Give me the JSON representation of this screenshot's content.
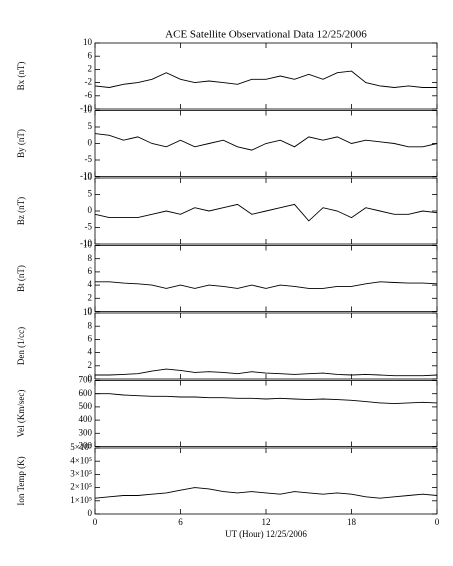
{
  "chart_data": [
    {
      "type": "line",
      "title": "ACE Satellite Observational Data   12/25/2006",
      "y_label": "Bx (nT)",
      "x": [
        0,
        1,
        2,
        3,
        4,
        5,
        6,
        7,
        8,
        9,
        10,
        11,
        12,
        13,
        14,
        15,
        16,
        17,
        18,
        19,
        20,
        21,
        22,
        23,
        24
      ],
      "values": [
        -3,
        -3.5,
        -2.5,
        -2,
        -1,
        1,
        -1,
        -2,
        -1.5,
        -2,
        -2.5,
        -1,
        -1,
        0,
        -1,
        0.5,
        -1,
        1,
        1.5,
        -2,
        -3,
        -3.5,
        -3,
        -3.5,
        -3.5
      ],
      "color": "#000000",
      "xlim": [
        0,
        24
      ],
      "ylim": [
        -10,
        10
      ],
      "yticks": [
        -10,
        -6,
        -2,
        2,
        6,
        10
      ]
    },
    {
      "type": "line",
      "y_label": "By (nT)",
      "x": [
        0,
        1,
        2,
        3,
        4,
        5,
        6,
        7,
        8,
        9,
        10,
        11,
        12,
        13,
        14,
        15,
        16,
        17,
        18,
        19,
        20,
        21,
        22,
        23,
        24
      ],
      "values": [
        3,
        2.5,
        1,
        2,
        0,
        -1,
        1,
        -1,
        0,
        1,
        -1,
        -2,
        0,
        1,
        -1,
        2,
        1,
        2,
        0,
        1,
        0.5,
        0,
        -1,
        -1,
        0
      ],
      "color": "#000000",
      "xlim": [
        0,
        24
      ],
      "ylim": [
        -10,
        10
      ],
      "yticks": [
        -10,
        -5,
        0,
        5,
        10
      ]
    },
    {
      "type": "line",
      "y_label": "Bz (nT)",
      "x": [
        0,
        1,
        2,
        3,
        4,
        5,
        6,
        7,
        8,
        9,
        10,
        11,
        12,
        13,
        14,
        15,
        16,
        17,
        18,
        19,
        20,
        21,
        22,
        23,
        24
      ],
      "values": [
        -1,
        -2,
        -2,
        -2,
        -1,
        0,
        -1,
        1,
        0,
        1,
        2,
        -1,
        0,
        1,
        2,
        -3,
        1,
        0,
        -2,
        1,
        0,
        -1,
        -1,
        0,
        -0.5
      ],
      "color": "#000000",
      "xlim": [
        0,
        24
      ],
      "ylim": [
        -10,
        10
      ],
      "yticks": [
        -10,
        -5,
        0,
        5,
        10
      ]
    },
    {
      "type": "line",
      "y_label": "Bt (nT)",
      "x": [
        0,
        1,
        2,
        3,
        4,
        5,
        6,
        7,
        8,
        9,
        10,
        11,
        12,
        13,
        14,
        15,
        16,
        17,
        18,
        19,
        20,
        21,
        22,
        23,
        24
      ],
      "values": [
        4.5,
        4.5,
        4.3,
        4.2,
        4,
        3.5,
        4,
        3.5,
        4,
        3.8,
        3.5,
        4,
        3.5,
        4,
        3.8,
        3.5,
        3.5,
        3.8,
        3.8,
        4.2,
        4.5,
        4.4,
        4.3,
        4.3,
        4.2
      ],
      "color": "#000000",
      "xlim": [
        0,
        24
      ],
      "ylim": [
        0,
        10
      ],
      "yticks": [
        0,
        2,
        4,
        6,
        8,
        10
      ]
    },
    {
      "type": "line",
      "y_label": "Den (1/cc)",
      "x": [
        0,
        1,
        2,
        3,
        4,
        5,
        6,
        7,
        8,
        9,
        10,
        11,
        12,
        13,
        14,
        15,
        16,
        17,
        18,
        19,
        20,
        21,
        22,
        23,
        24
      ],
      "values": [
        0.6,
        0.6,
        0.7,
        0.8,
        1.2,
        1.5,
        1.3,
        1,
        1.1,
        1,
        0.8,
        1.1,
        0.9,
        0.8,
        0.7,
        0.8,
        0.9,
        0.7,
        0.6,
        0.7,
        0.6,
        0.5,
        0.5,
        0.5,
        0.6
      ],
      "color": "#000000",
      "xlim": [
        0,
        24
      ],
      "ylim": [
        0,
        10
      ],
      "yticks": [
        0,
        2,
        4,
        6,
        8,
        10
      ]
    },
    {
      "type": "line",
      "y_label": "Vel (Km/sec)",
      "x": [
        0,
        1,
        2,
        3,
        4,
        5,
        6,
        7,
        8,
        9,
        10,
        11,
        12,
        13,
        14,
        15,
        16,
        17,
        18,
        19,
        20,
        21,
        22,
        23,
        24
      ],
      "values": [
        600,
        600,
        590,
        585,
        580,
        580,
        575,
        575,
        570,
        570,
        565,
        565,
        560,
        565,
        560,
        555,
        560,
        555,
        550,
        540,
        530,
        525,
        530,
        535,
        530
      ],
      "color": "#000000",
      "xlim": [
        0,
        24
      ],
      "ylim": [
        200,
        700
      ],
      "yticks": [
        200,
        300,
        400,
        500,
        600,
        700
      ]
    },
    {
      "type": "line",
      "y_label": "Ion Temp (K)",
      "x_label": "UT (Hour)  12/25/2006",
      "x": [
        0,
        1,
        2,
        3,
        4,
        5,
        6,
        7,
        8,
        9,
        10,
        11,
        12,
        13,
        14,
        15,
        16,
        17,
        18,
        19,
        20,
        21,
        22,
        23,
        24
      ],
      "values": [
        120000,
        130000,
        140000,
        140000,
        150000,
        160000,
        180000,
        200000,
        190000,
        170000,
        160000,
        170000,
        160000,
        150000,
        170000,
        160000,
        150000,
        160000,
        150000,
        130000,
        120000,
        130000,
        140000,
        150000,
        140000
      ],
      "color": "#000000",
      "xlim": [
        0,
        24
      ],
      "ylim": [
        0,
        500000
      ],
      "yticks": [
        0,
        {
          "value": 100000,
          "label": "1×10⁵"
        },
        {
          "value": 200000,
          "label": "2×10⁵"
        },
        {
          "value": 300000,
          "label": "3×10⁵"
        },
        {
          "value": 400000,
          "label": "4×10⁵"
        },
        {
          "value": 500000,
          "label": "5×10⁵"
        }
      ],
      "xticks": [
        0,
        6,
        12,
        18,
        {
          "value": 24,
          "label": "0"
        }
      ]
    }
  ]
}
